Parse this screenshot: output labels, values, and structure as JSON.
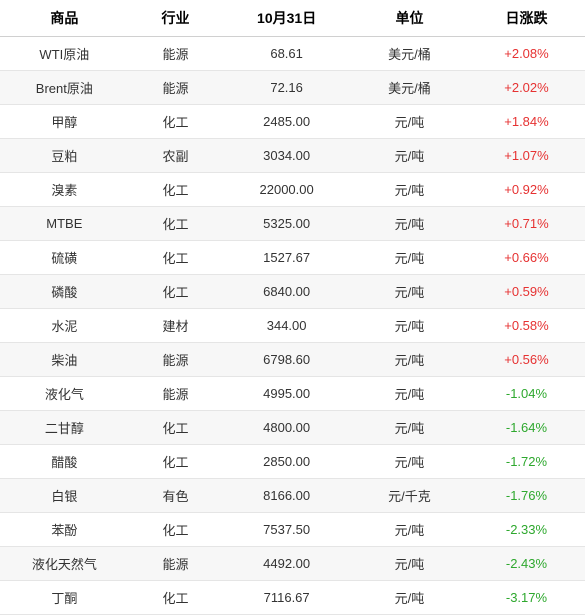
{
  "headers": {
    "product": "商品",
    "industry": "行业",
    "date": "10月31日",
    "unit": "单位",
    "change": "日涨跌"
  },
  "rows": [
    {
      "product": "WTI原油",
      "industry": "能源",
      "price": "68.61",
      "unit": "美元/桶",
      "change": "+2.08%",
      "dir": "up"
    },
    {
      "product": "Brent原油",
      "industry": "能源",
      "price": "72.16",
      "unit": "美元/桶",
      "change": "+2.02%",
      "dir": "up"
    },
    {
      "product": "甲醇",
      "industry": "化工",
      "price": "2485.00",
      "unit": "元/吨",
      "change": "+1.84%",
      "dir": "up"
    },
    {
      "product": "豆粕",
      "industry": "农副",
      "price": "3034.00",
      "unit": "元/吨",
      "change": "+1.07%",
      "dir": "up"
    },
    {
      "product": "溴素",
      "industry": "化工",
      "price": "22000.00",
      "unit": "元/吨",
      "change": "+0.92%",
      "dir": "up"
    },
    {
      "product": "MTBE",
      "industry": "化工",
      "price": "5325.00",
      "unit": "元/吨",
      "change": "+0.71%",
      "dir": "up"
    },
    {
      "product": "硫磺",
      "industry": "化工",
      "price": "1527.67",
      "unit": "元/吨",
      "change": "+0.66%",
      "dir": "up"
    },
    {
      "product": "磷酸",
      "industry": "化工",
      "price": "6840.00",
      "unit": "元/吨",
      "change": "+0.59%",
      "dir": "up"
    },
    {
      "product": "水泥",
      "industry": "建材",
      "price": "344.00",
      "unit": "元/吨",
      "change": "+0.58%",
      "dir": "up"
    },
    {
      "product": "柴油",
      "industry": "能源",
      "price": "6798.60",
      "unit": "元/吨",
      "change": "+0.56%",
      "dir": "up"
    },
    {
      "product": "液化气",
      "industry": "能源",
      "price": "4995.00",
      "unit": "元/吨",
      "change": "-1.04%",
      "dir": "down"
    },
    {
      "product": "二甘醇",
      "industry": "化工",
      "price": "4800.00",
      "unit": "元/吨",
      "change": "-1.64%",
      "dir": "down"
    },
    {
      "product": "醋酸",
      "industry": "化工",
      "price": "2850.00",
      "unit": "元/吨",
      "change": "-1.72%",
      "dir": "down"
    },
    {
      "product": "白银",
      "industry": "有色",
      "price": "8166.00",
      "unit": "元/千克",
      "change": "-1.76%",
      "dir": "down"
    },
    {
      "product": "苯酚",
      "industry": "化工",
      "price": "7537.50",
      "unit": "元/吨",
      "change": "-2.33%",
      "dir": "down"
    },
    {
      "product": "液化天然气",
      "industry": "能源",
      "price": "4492.00",
      "unit": "元/吨",
      "change": "-2.43%",
      "dir": "down"
    },
    {
      "product": "丁酮",
      "industry": "化工",
      "price": "7116.67",
      "unit": "元/吨",
      "change": "-3.17%",
      "dir": "down"
    }
  ]
}
